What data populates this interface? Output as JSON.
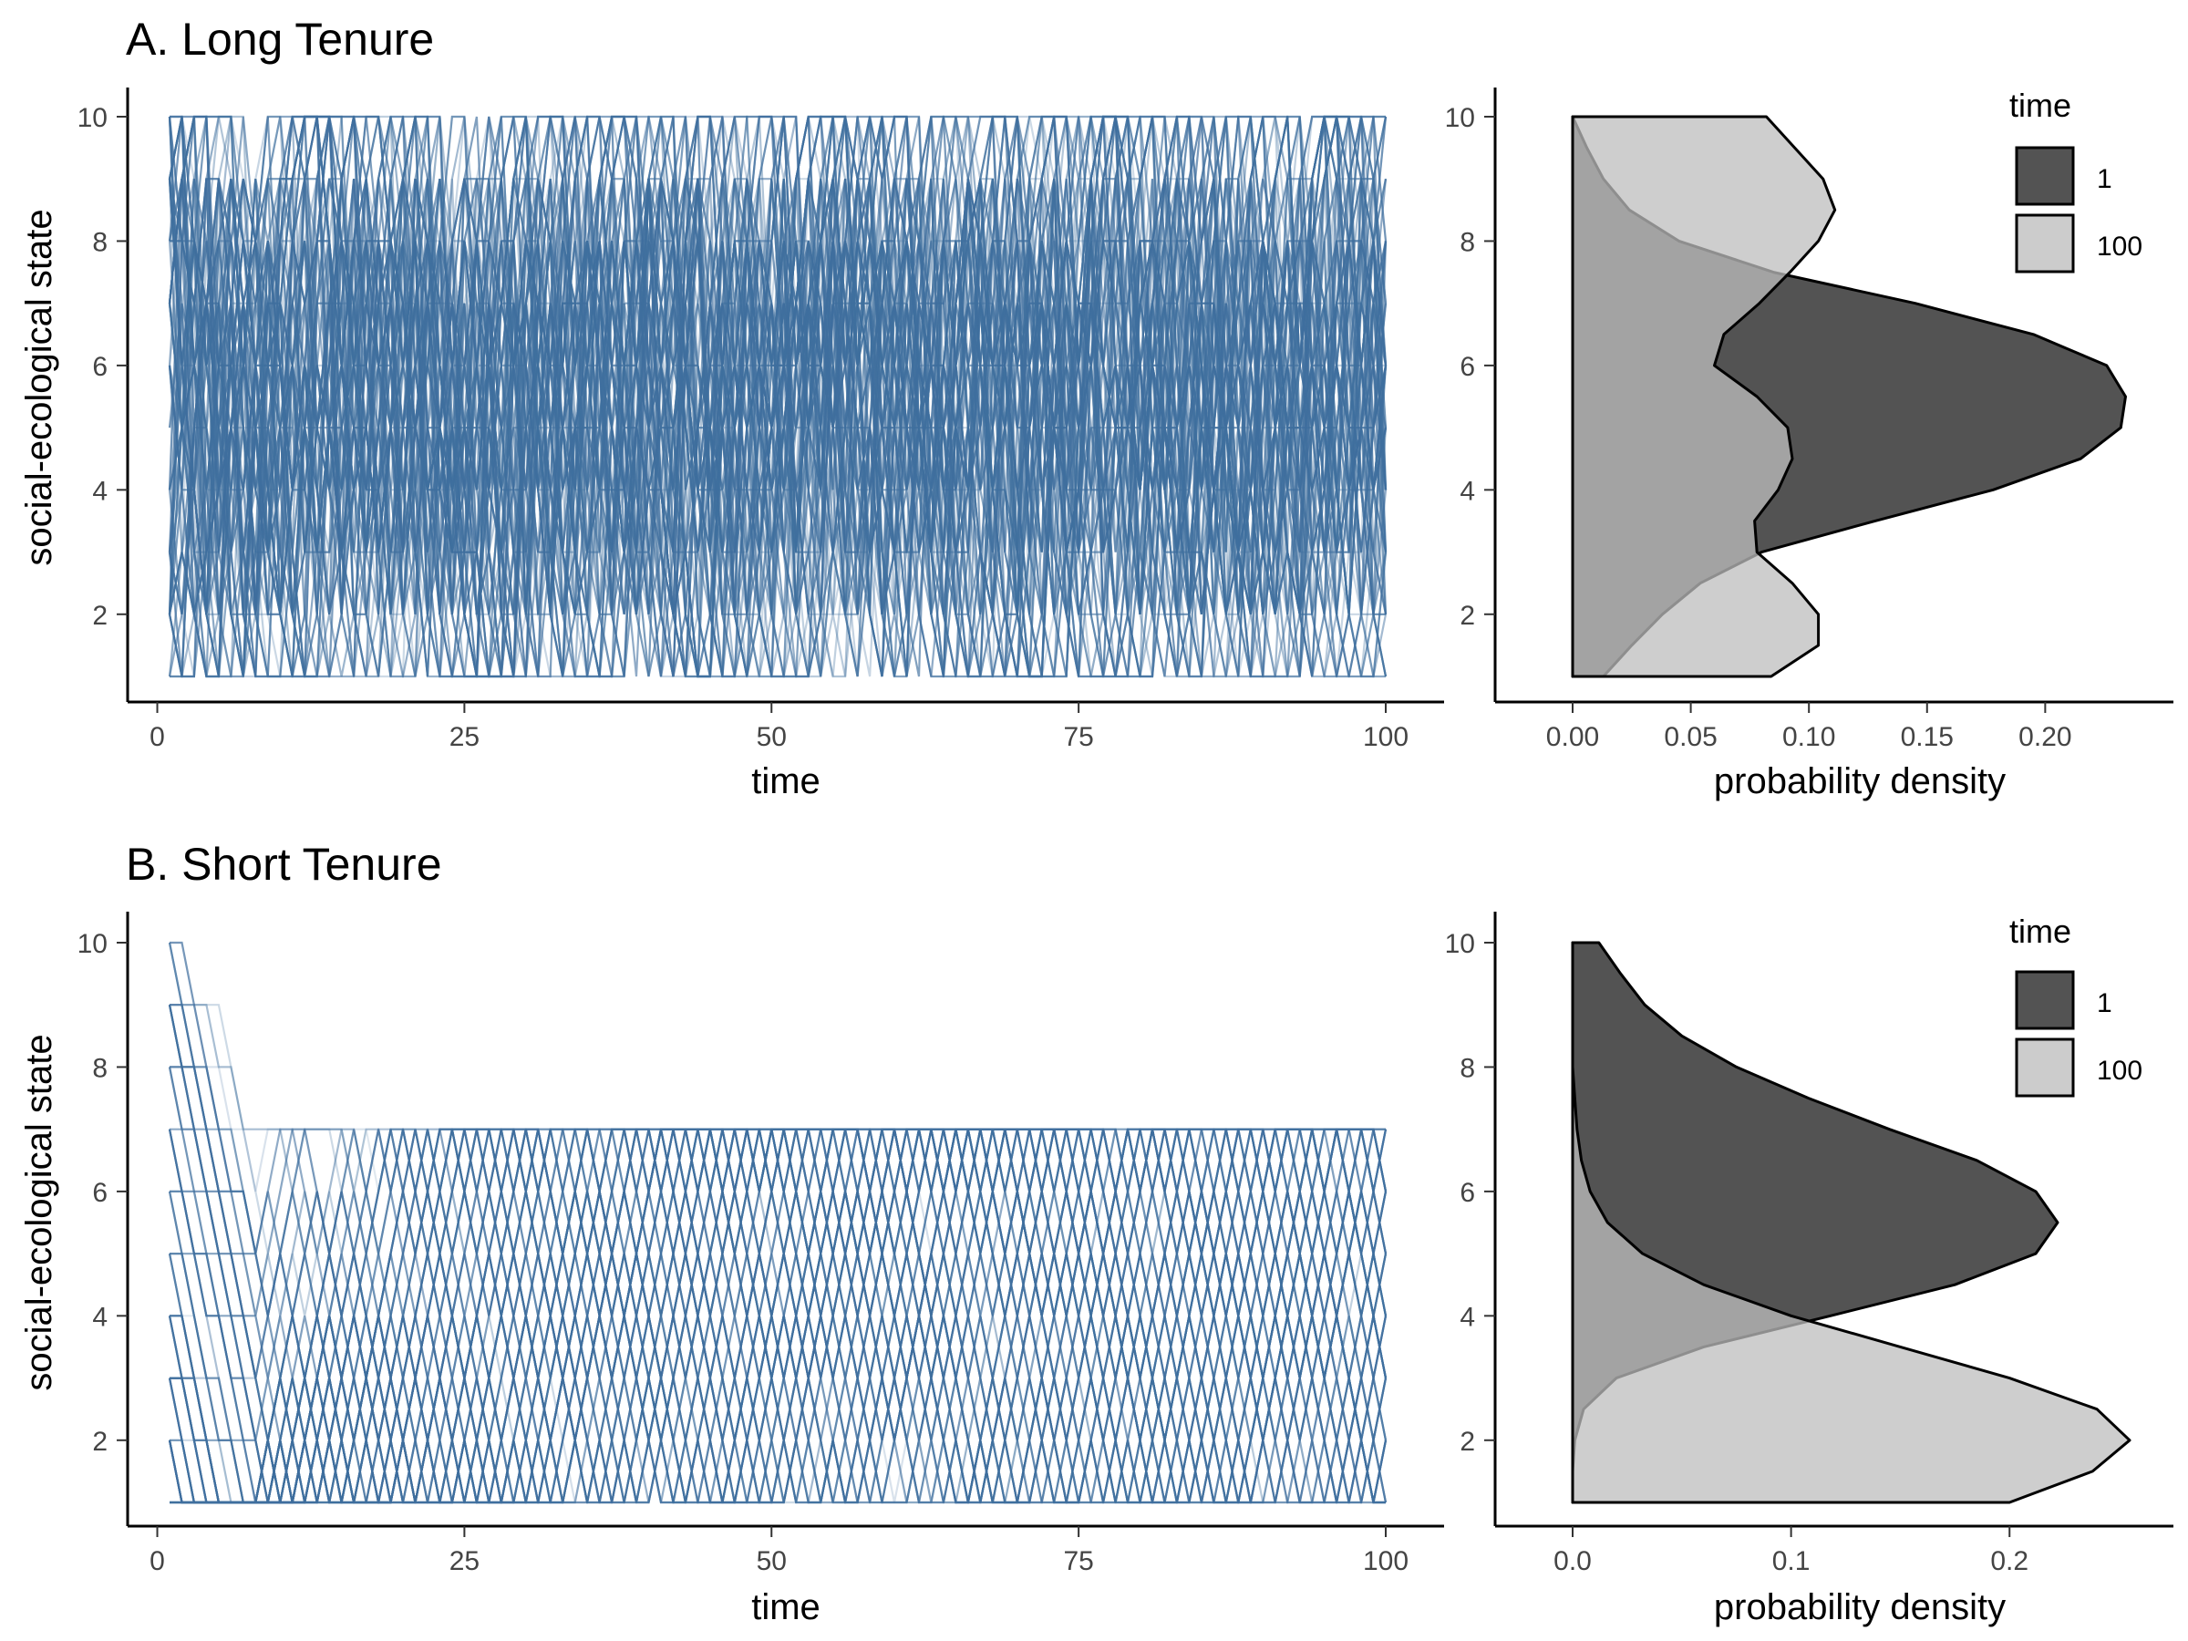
{
  "figure": {
    "panels": [
      {
        "title": "A. Long Tenure",
        "trajectory": {
          "xlabel": "time",
          "ylabel": "social-ecological state",
          "xticks": [
            "0",
            "25",
            "50",
            "75",
            "100"
          ],
          "yticks": [
            "2",
            "4",
            "6",
            "8",
            "10"
          ]
        },
        "density": {
          "xlabel": "probability density",
          "xticks": [
            "0.00",
            "0.05",
            "0.10",
            "0.15",
            "0.20"
          ],
          "yticks": [
            "2",
            "4",
            "6",
            "8",
            "10"
          ],
          "legend": {
            "title": "time",
            "labels": [
              "1",
              "100"
            ]
          }
        }
      },
      {
        "title": "B. Short Tenure",
        "trajectory": {
          "xlabel": "time",
          "ylabel": "social-ecological state",
          "xticks": [
            "0",
            "25",
            "50",
            "75",
            "100"
          ],
          "yticks": [
            "2",
            "4",
            "6",
            "8",
            "10"
          ]
        },
        "density": {
          "xlabel": "probability density",
          "xticks": [
            "0.0",
            "0.1",
            "0.2"
          ],
          "yticks": [
            "2",
            "4",
            "6",
            "8",
            "10"
          ],
          "legend": {
            "title": "time",
            "labels": [
              "1",
              "100"
            ]
          }
        }
      }
    ]
  },
  "chart_data": [
    {
      "type": "line",
      "panel": "A. Long Tenure",
      "xlabel": "time",
      "ylabel": "social-ecological state",
      "xlim": [
        1,
        100
      ],
      "ylim": [
        1,
        10
      ],
      "xticks": [
        0,
        25,
        50,
        75,
        100
      ],
      "yticks": [
        2,
        4,
        6,
        8,
        10
      ],
      "line_color": "#3f6f9e",
      "description_states": [
        1,
        2,
        3,
        4,
        5,
        6,
        7,
        8,
        9,
        10
      ],
      "grid": false
    },
    {
      "type": "area",
      "panel": "A. Long Tenure",
      "xlabel": "probability density",
      "ylabel": "",
      "xlim": [
        0,
        0.245
      ],
      "ylim": [
        1,
        10
      ],
      "xticks": [
        0,
        0.05,
        0.1,
        0.15,
        0.2
      ],
      "yticks": [
        2,
        4,
        6,
        8,
        10
      ],
      "legend_title": "time",
      "legend_position": "top-right",
      "series": [
        {
          "name": "1",
          "color": "#2b2b2b",
          "y": [
            1,
            1.5,
            2,
            2.5,
            3,
            3.5,
            4,
            4.5,
            5,
            5.5,
            6,
            6.5,
            7,
            7.5,
            8,
            8.5,
            9,
            9.5,
            10
          ],
          "density": [
            0.013,
            0.025,
            0.038,
            0.054,
            0.08,
            0.128,
            0.178,
            0.215,
            0.232,
            0.234,
            0.226,
            0.195,
            0.145,
            0.085,
            0.045,
            0.024,
            0.013,
            0.006,
            0.0
          ]
        },
        {
          "name": "100",
          "color": "#bdbdbd",
          "y": [
            1,
            1.5,
            2,
            2.5,
            3,
            3.5,
            4,
            4.5,
            5,
            5.5,
            6,
            6.5,
            7,
            7.5,
            8,
            8.5,
            9,
            9.5,
            10
          ],
          "density": [
            0.084,
            0.104,
            0.104,
            0.093,
            0.078,
            0.077,
            0.087,
            0.093,
            0.091,
            0.078,
            0.06,
            0.064,
            0.079,
            0.092,
            0.104,
            0.111,
            0.106,
            0.094,
            0.082
          ]
        }
      ]
    },
    {
      "type": "line",
      "panel": "B. Short Tenure",
      "xlabel": "time",
      "ylabel": "social-ecological state",
      "xlim": [
        1,
        100
      ],
      "ylim": [
        1,
        10
      ],
      "xticks": [
        0,
        25,
        50,
        75,
        100
      ],
      "yticks": [
        2,
        4,
        6,
        8,
        10
      ],
      "line_color": "#3f6f9e",
      "description_states": [
        1,
        2,
        3,
        4,
        5,
        6,
        7,
        8,
        9,
        10
      ],
      "grid": false
    },
    {
      "type": "area",
      "panel": "B. Short Tenure",
      "xlabel": "probability density",
      "ylabel": "",
      "xlim": [
        0,
        0.265
      ],
      "ylim": [
        1,
        10
      ],
      "xticks": [
        0,
        0.1,
        0.2
      ],
      "yticks": [
        2,
        4,
        6,
        8,
        10
      ],
      "legend_title": "time",
      "legend_position": "top-right",
      "series": [
        {
          "name": "1",
          "color": "#2b2b2b",
          "y": [
            1,
            1.5,
            2,
            2.5,
            3,
            3.5,
            4,
            4.5,
            5,
            5.5,
            6,
            6.5,
            7,
            7.5,
            8,
            8.5,
            9,
            9.5,
            10
          ],
          "density": [
            0.0,
            0.0,
            0.001,
            0.005,
            0.02,
            0.06,
            0.118,
            0.175,
            0.212,
            0.222,
            0.212,
            0.185,
            0.145,
            0.108,
            0.075,
            0.05,
            0.033,
            0.022,
            0.012
          ]
        },
        {
          "name": "100",
          "color": "#bdbdbd",
          "y": [
            1,
            1.5,
            2,
            2.5,
            3,
            3.5,
            4,
            4.5,
            5,
            5.5,
            6,
            6.5,
            7,
            7.5,
            8,
            8.5,
            9,
            9.5,
            10
          ],
          "density": [
            0.2,
            0.238,
            0.255,
            0.24,
            0.2,
            0.15,
            0.1,
            0.06,
            0.032,
            0.016,
            0.008,
            0.004,
            0.002,
            0.001,
            0.0,
            0.0,
            0.0,
            0.0,
            0.0
          ]
        }
      ]
    }
  ]
}
